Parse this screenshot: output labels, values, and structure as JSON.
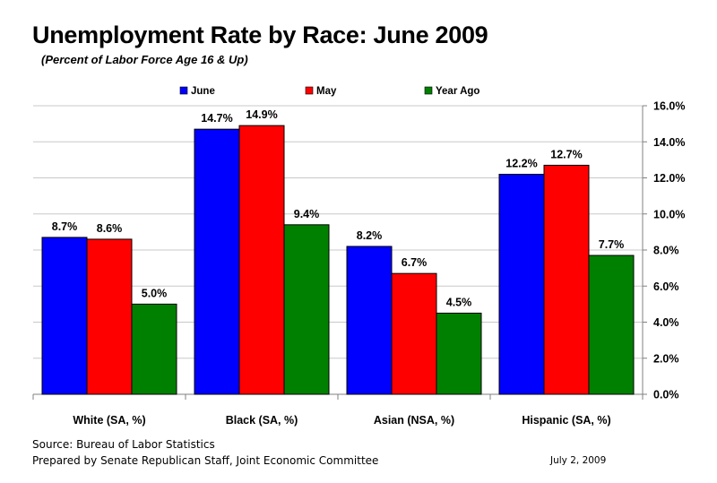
{
  "chart_data": {
    "type": "bar",
    "title": "Unemployment Rate by Race:  June 2009",
    "subtitle": "(Percent of Labor Force Age 16 & Up)",
    "categories": [
      "White (SA, %)",
      "Black (SA, %)",
      "Asian  (NSA, %)",
      "Hispanic (SA, %)"
    ],
    "series": [
      {
        "name": "June",
        "color": "#0000ff",
        "values": [
          8.7,
          14.7,
          8.2,
          12.2
        ],
        "labels": [
          "8.7%",
          "14.7%",
          "8.2%",
          "12.2%"
        ]
      },
      {
        "name": "May",
        "color": "#ff0000",
        "values": [
          8.6,
          14.9,
          6.7,
          12.7
        ],
        "labels": [
          "8.6%",
          "14.9%",
          "6.7%",
          "12.7%"
        ]
      },
      {
        "name": "Year Ago",
        "color": "#008000",
        "values": [
          5.0,
          9.4,
          4.5,
          7.7
        ],
        "labels": [
          "5.0%",
          "9.4%",
          "4.5%",
          "7.7%"
        ]
      }
    ],
    "ylim": [
      0,
      16
    ],
    "yticks": [
      "0.0%",
      "2.0%",
      "4.0%",
      "6.0%",
      "8.0%",
      "10.0%",
      "12.0%",
      "14.0%",
      "16.0%"
    ],
    "y_axis_position": "right",
    "legend_position": "top",
    "grid": true
  },
  "footer": {
    "source": "Source:  Bureau of Labor Statistics",
    "prepared": "Prepared by Senate Republican Staff, Joint Economic Committee",
    "date": "July 2, 2009"
  }
}
